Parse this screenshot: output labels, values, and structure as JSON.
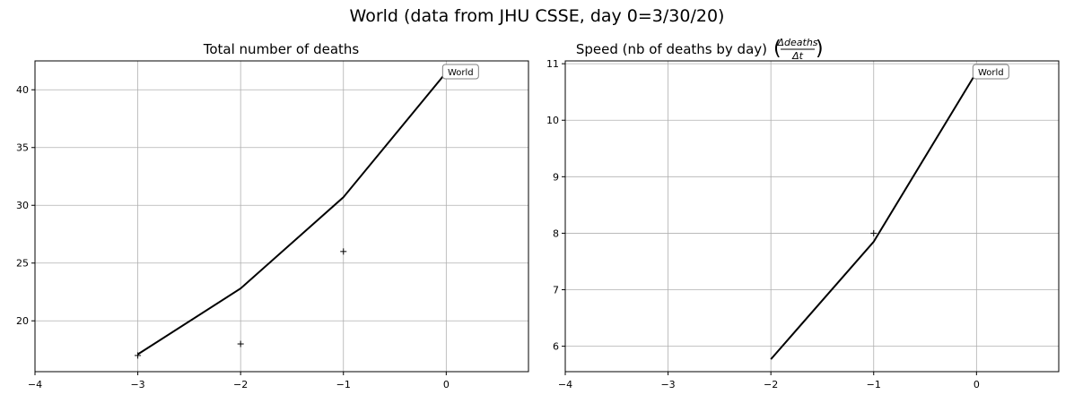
{
  "suptitle": "World (data from JHU CSSE, day 0=3/30/20)",
  "chart_data": [
    {
      "type": "line",
      "title": "Total number of deaths",
      "xlim": [
        -4,
        0.8
      ],
      "ylim": [
        15.6,
        42.5
      ],
      "xticks": [
        -4,
        -3,
        -2,
        -1,
        0
      ],
      "yticks": [
        20,
        25,
        30,
        35,
        40
      ],
      "grid": true,
      "annotation": "World",
      "series": [
        {
          "style": "line",
          "x": [
            -3,
            -2,
            -1,
            0
          ],
          "y": [
            17.1,
            22.8,
            30.7,
            41.5
          ]
        },
        {
          "style": "marker-plus",
          "x": [
            -3,
            -2,
            -1,
            0
          ],
          "y": [
            17,
            18,
            26,
            41.8
          ]
        }
      ]
    },
    {
      "type": "line",
      "title": "Speed (nb of deaths by day)",
      "title_math": {
        "numerator": "Δdeaths",
        "denominator": "Δt"
      },
      "xlim": [
        -4,
        0.8
      ],
      "ylim": [
        5.55,
        11.05
      ],
      "xticks": [
        -4,
        -3,
        -2,
        -1,
        0
      ],
      "yticks": [
        6,
        7,
        8,
        9,
        10,
        11
      ],
      "grid": true,
      "annotation": "World",
      "series": [
        {
          "style": "line",
          "x": [
            -2,
            -1,
            0
          ],
          "y": [
            5.77,
            7.85,
            10.85
          ]
        },
        {
          "style": "marker-plus",
          "x": [
            -1,
            0
          ],
          "y": [
            8,
            10.9
          ]
        }
      ]
    }
  ]
}
